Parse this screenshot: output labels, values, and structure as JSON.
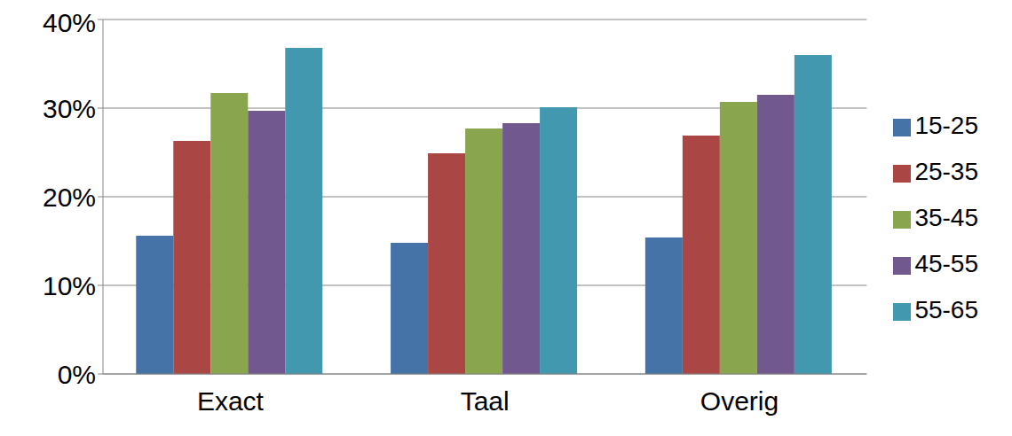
{
  "chart_data": {
    "type": "bar",
    "categories": [
      "Exact",
      "Taal",
      "Overig"
    ],
    "series": [
      {
        "name": "15-25",
        "color": "#4572a7",
        "values": [
          15.6,
          14.8,
          15.4
        ]
      },
      {
        "name": "25-35",
        "color": "#aa4643",
        "values": [
          26.3,
          24.9,
          26.9
        ]
      },
      {
        "name": "35-45",
        "color": "#89a54e",
        "values": [
          31.7,
          27.7,
          30.7
        ]
      },
      {
        "name": "45-55",
        "color": "#71588f",
        "values": [
          29.7,
          28.3,
          31.5
        ]
      },
      {
        "name": "55-65",
        "color": "#4198af",
        "values": [
          36.8,
          30.1,
          36.0
        ]
      }
    ],
    "ylim": [
      0,
      40
    ],
    "yticks": [
      {
        "value": 0,
        "label": "0%"
      },
      {
        "value": 10,
        "label": "10%"
      },
      {
        "value": 20,
        "label": "20%"
      },
      {
        "value": 30,
        "label": "30%"
      },
      {
        "value": 40,
        "label": "40%"
      }
    ],
    "grid": true,
    "legend": "right"
  }
}
